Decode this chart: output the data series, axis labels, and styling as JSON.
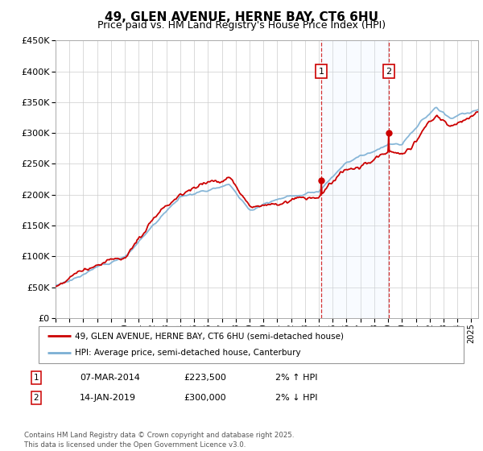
{
  "title": "49, GLEN AVENUE, HERNE BAY, CT6 6HU",
  "subtitle": "Price paid vs. HM Land Registry's House Price Index (HPI)",
  "ylim": [
    0,
    450000
  ],
  "xlim_start": 1995,
  "xlim_end": 2025.5,
  "sale1_date": 2014.18,
  "sale1_price": 223500,
  "sale1_label": "1",
  "sale2_date": 2019.04,
  "sale2_price": 300000,
  "sale2_label": "2",
  "legend_line1": "49, GLEN AVENUE, HERNE BAY, CT6 6HU (semi-detached house)",
  "legend_line2": "HPI: Average price, semi-detached house, Canterbury",
  "table_row1": [
    "1",
    "07-MAR-2014",
    "£223,500",
    "2% ↑ HPI"
  ],
  "table_row2": [
    "2",
    "14-JAN-2019",
    "£300,000",
    "2% ↓ HPI"
  ],
  "footer": "Contains HM Land Registry data © Crown copyright and database right 2025.\nThis data is licensed under the Open Government Licence v3.0.",
  "line_color_price": "#cc0000",
  "line_color_hpi": "#7bafd4",
  "shade_color": "#ddeeff",
  "background_color": "#ffffff",
  "grid_color": "#cccccc",
  "title_fontsize": 11,
  "subtitle_fontsize": 9
}
